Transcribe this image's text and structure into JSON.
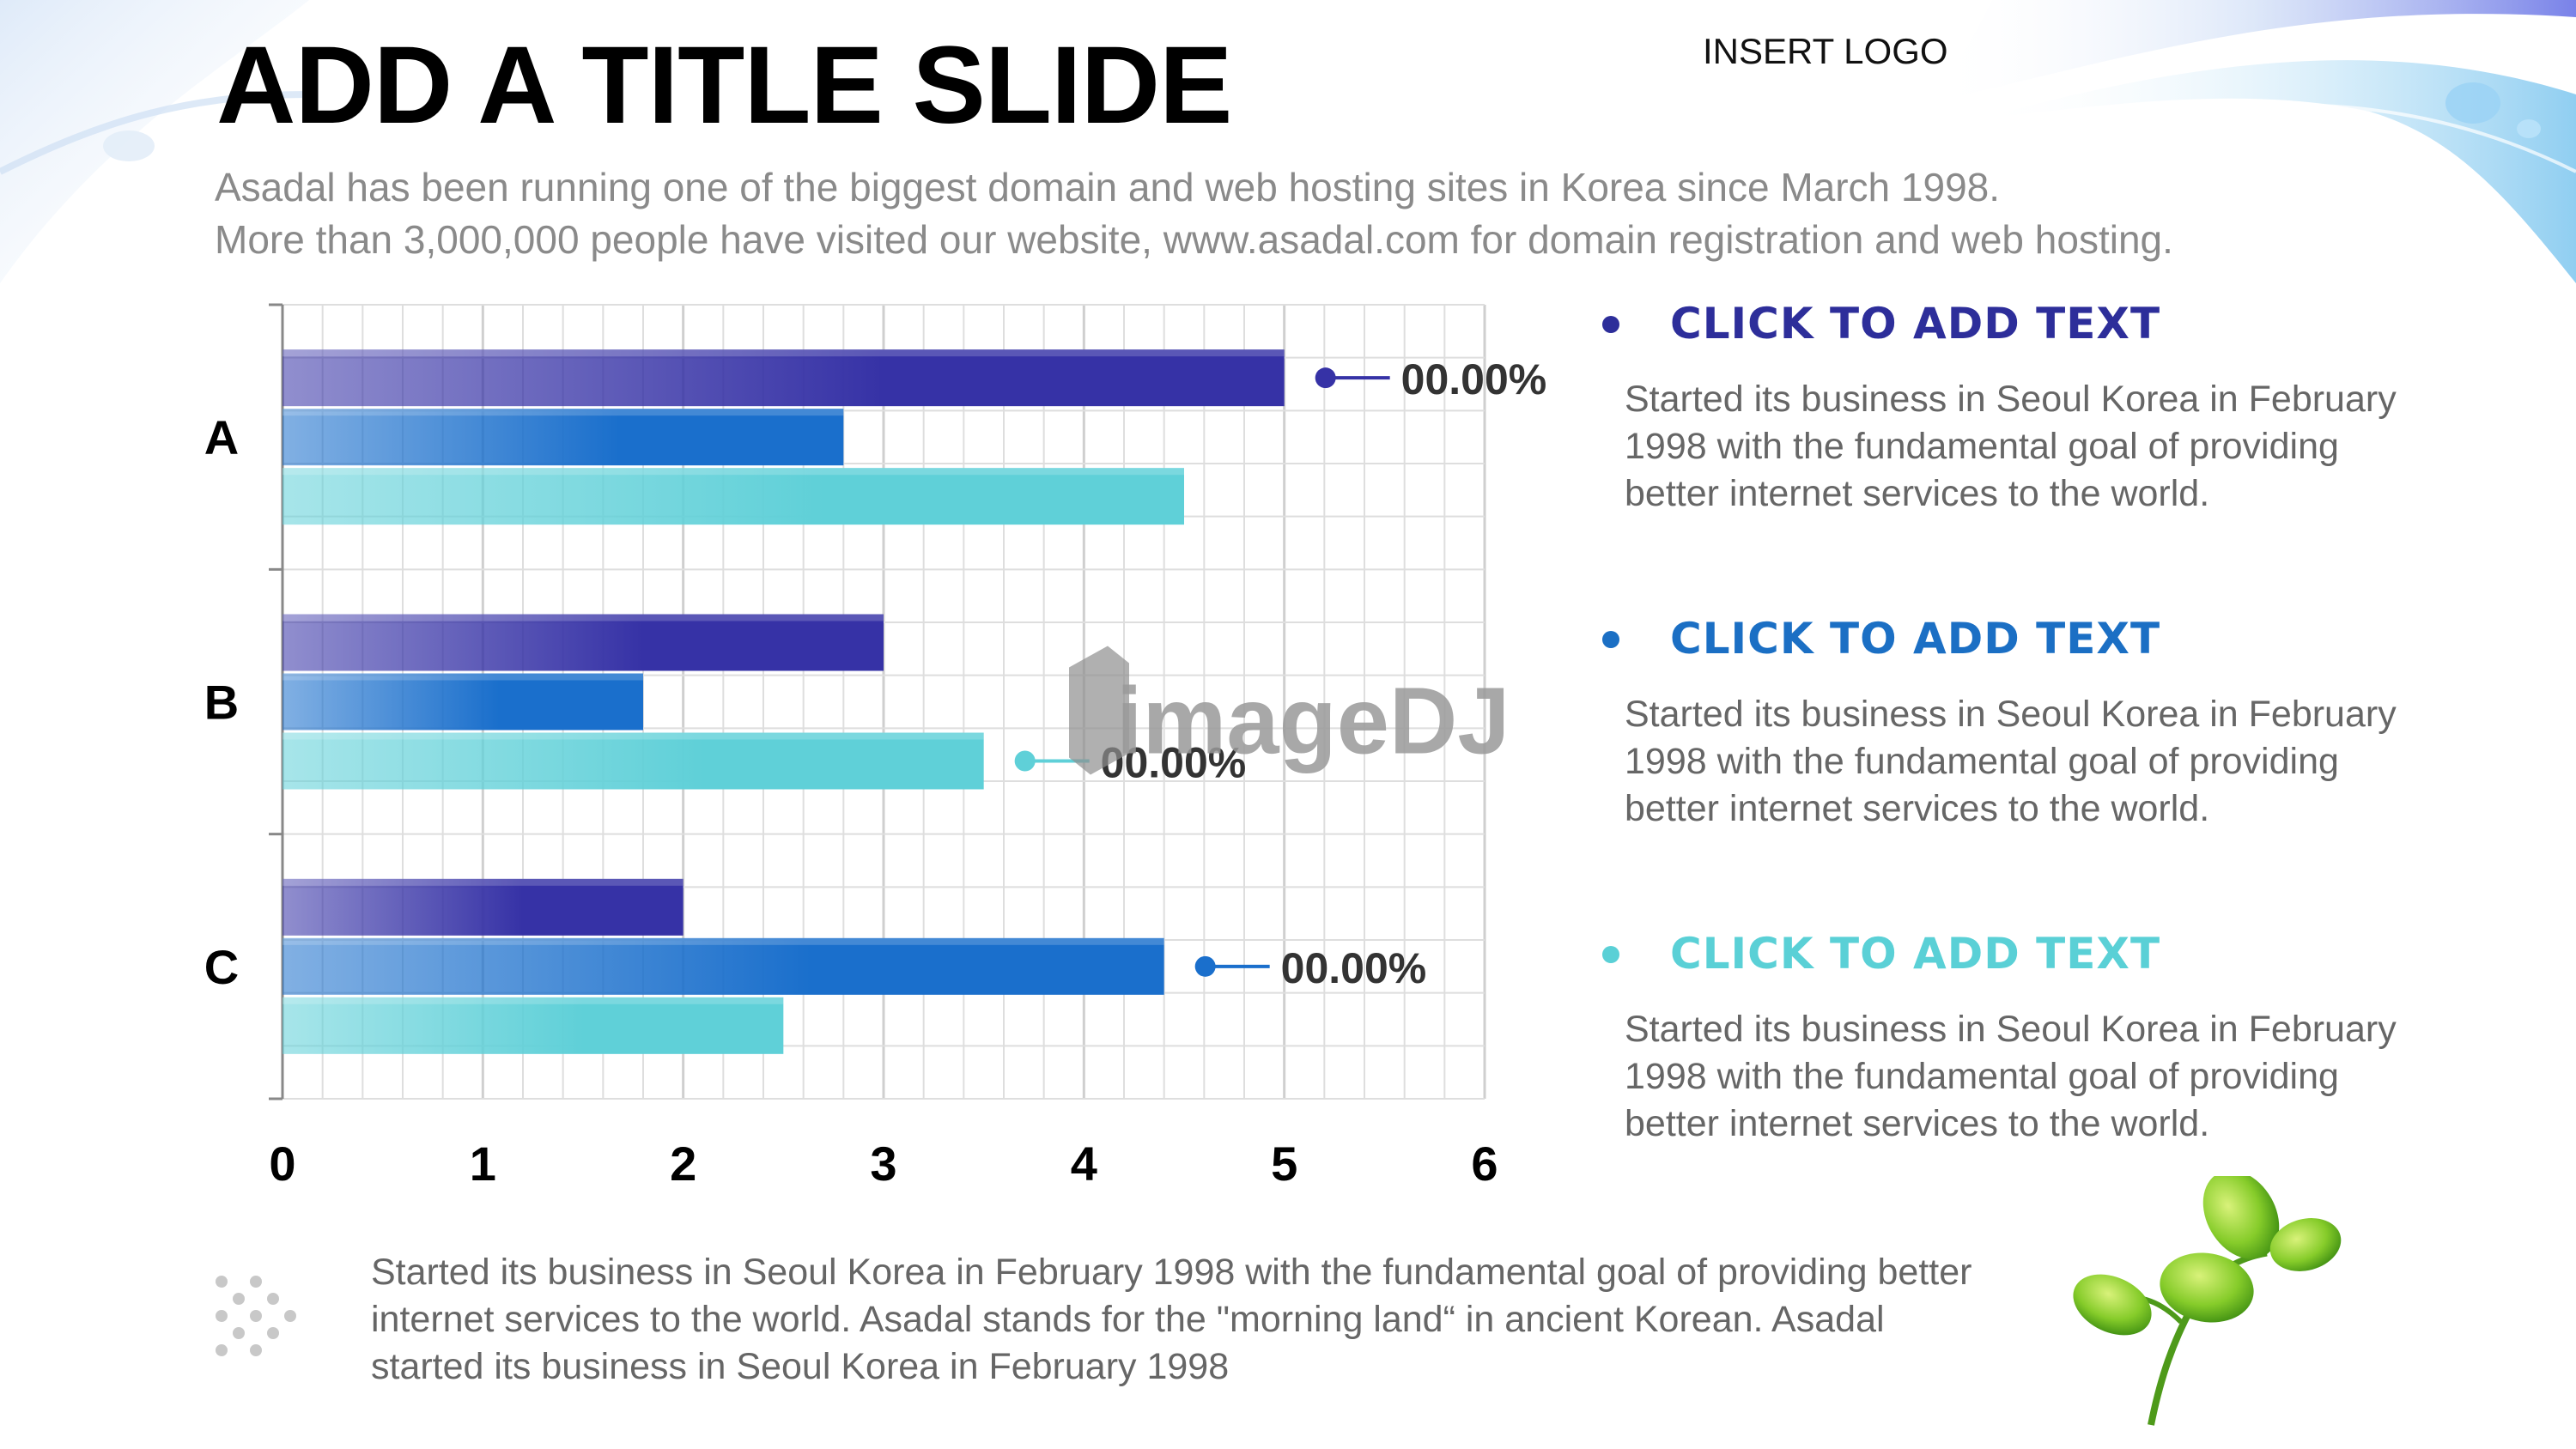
{
  "header": {
    "title": "ADD A TITLE SLIDE",
    "logo_text": "INSERT LOGO",
    "subtitle_lines": [
      "Asadal has been running one of the biggest domain and web hosting sites in Korea since March 1998.",
      "More than 3,000,000 people have visited our website,  www.asadal.com for domain registration and web hosting."
    ]
  },
  "chart_data": {
    "type": "bar",
    "orientation": "horizontal",
    "categories": [
      "A",
      "B",
      "C"
    ],
    "series": [
      {
        "values": [
          5,
          3,
          2
        ],
        "color": "#3632a6"
      },
      {
        "values": [
          2.8,
          1.8,
          4.4
        ],
        "color": "#1a6fcc"
      },
      {
        "values": [
          4.5,
          3.5,
          2.5
        ],
        "color": "#5fd0d8"
      }
    ],
    "xlim": [
      0,
      6
    ],
    "xticks": [
      0,
      1,
      2,
      3,
      4,
      5,
      6
    ],
    "grid": true,
    "annotations": [
      {
        "category": "A",
        "series": 0,
        "label": "00.00%"
      },
      {
        "category": "B",
        "series": 2,
        "label": "00.00%"
      },
      {
        "category": "C",
        "series": 1,
        "label": "00.00%"
      }
    ],
    "watermark": "imageDJ"
  },
  "side_items": [
    {
      "heading": "CLICK TO ADD TEXT",
      "color": "#2d2e9a",
      "body": "Started its business in Seoul Korea  in February 1998 with the fundamental goal of providing better internet services to the world."
    },
    {
      "heading": "CLICK TO ADD TEXT",
      "color": "#1b6fc4",
      "body": "Started its business in Seoul Korea  in February 1998 with the fundamental goal of providing better internet services to the world."
    },
    {
      "heading": "CLICK TO ADD TEXT",
      "color": "#5ad0d6",
      "body": "Started its business in Seoul Korea  in February 1998 with the fundamental goal of providing better internet services to the world."
    }
  ],
  "footer": {
    "text": "Started its business in Seoul Korea  in February 1998 with the fundamental goal of providing better internet services to the world. Asadal stands for the \"morning land“ in ancient Korean. Asadal started its business in Seoul Korea  in February 1998"
  },
  "icons": {
    "dots": "dots-pattern-icon",
    "sprout": "sprout-icon"
  }
}
